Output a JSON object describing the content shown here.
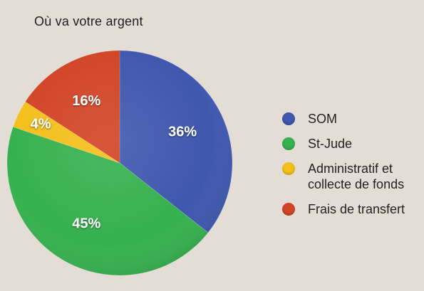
{
  "chart_data": {
    "type": "pie",
    "title": "Où va votre argent",
    "categories": [
      "SOM",
      "St-Jude",
      "Administratif et\ncollecte de fonds",
      "Frais de transfert"
    ],
    "values": [
      36,
      45,
      4,
      16
    ],
    "labels": [
      "36%",
      "45%",
      "4%",
      "16%"
    ],
    "colors": [
      "#3f57ae",
      "#36b14f",
      "#f4bf1b",
      "#d24426"
    ],
    "legend_position": "right"
  }
}
